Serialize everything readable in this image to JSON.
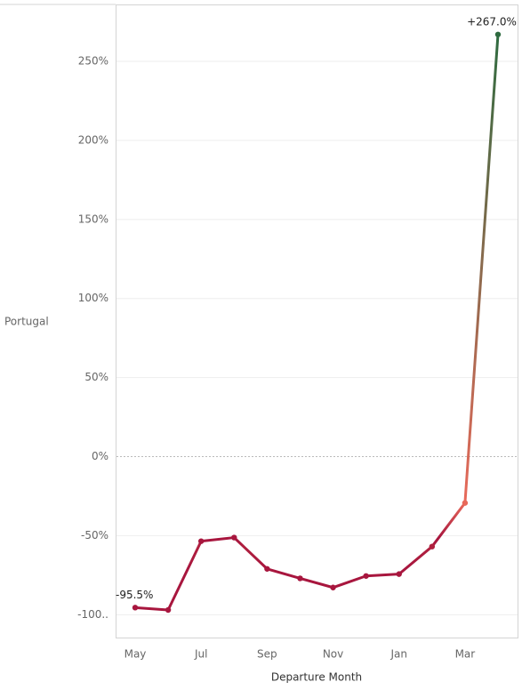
{
  "chart_data": {
    "type": "line",
    "row_label": "Portugal",
    "x_label": "Departure Month",
    "categories": [
      "May",
      null,
      "Jul",
      null,
      "Sep",
      null,
      "Nov",
      null,
      "Jan",
      null,
      "Mar",
      null
    ],
    "values": [
      -95.5,
      -97,
      -53.5,
      -51.2,
      -71,
      -77,
      -82.8,
      -75.5,
      -74.3,
      -56.9,
      -29.3,
      267.0
    ],
    "value_labels": [
      "-95.5%",
      null,
      null,
      null,
      null,
      null,
      null,
      null,
      null,
      null,
      null,
      "+267.0%"
    ],
    "point_colors": [
      "#a8163e",
      "#a8163e",
      "#a8163e",
      "#a8163e",
      "#a8163e",
      "#a8163e",
      "#a8163e",
      "#a8163e",
      "#a8163e",
      "#b0203f",
      "#e8695a",
      "#2f6b40"
    ],
    "ylim": [
      -115,
      286
    ],
    "yticks": [
      {
        "value": -100,
        "label": "-100.."
      },
      {
        "value": -50,
        "label": "-50%"
      },
      {
        "value": 0,
        "label": "0%"
      },
      {
        "value": 50,
        "label": "50%"
      },
      {
        "value": 100,
        "label": "100%"
      },
      {
        "value": 150,
        "label": "150%"
      },
      {
        "value": 200,
        "label": "200%"
      },
      {
        "value": 250,
        "label": "250%"
      }
    ],
    "grid": true
  }
}
